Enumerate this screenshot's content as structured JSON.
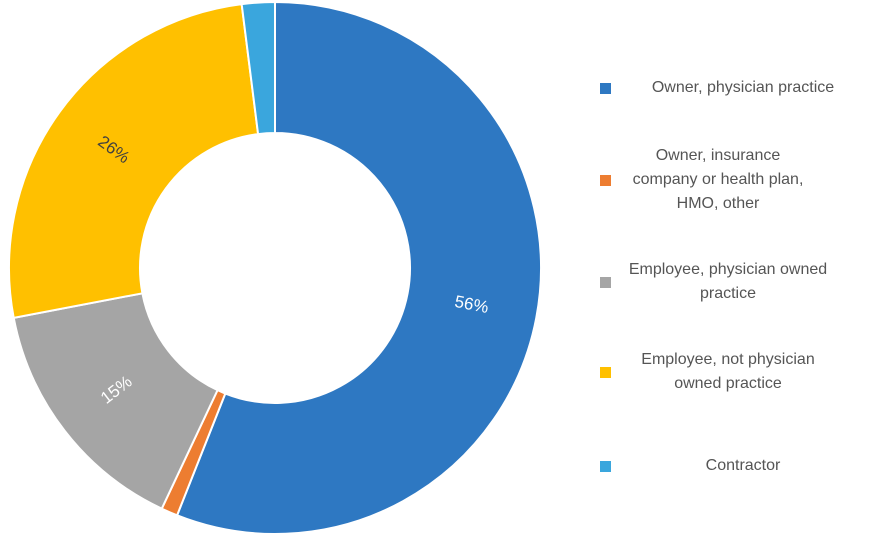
{
  "chart_data": {
    "type": "donut",
    "categories": [
      "Owner, physician practice",
      "Owner, insurance company or health plan, HMO, other",
      "Employee, physician owned practice",
      "Employee, not physician owned practice",
      "Contractor"
    ],
    "values": [
      56,
      1,
      15,
      26,
      2
    ],
    "value_labels": [
      "56%",
      null,
      "15%",
      "26%",
      null
    ],
    "colors": [
      "#2e78c2",
      "#ed7d31",
      "#a5a5a5",
      "#ffc000",
      "#3aa6dd"
    ],
    "legend": "right"
  }
}
